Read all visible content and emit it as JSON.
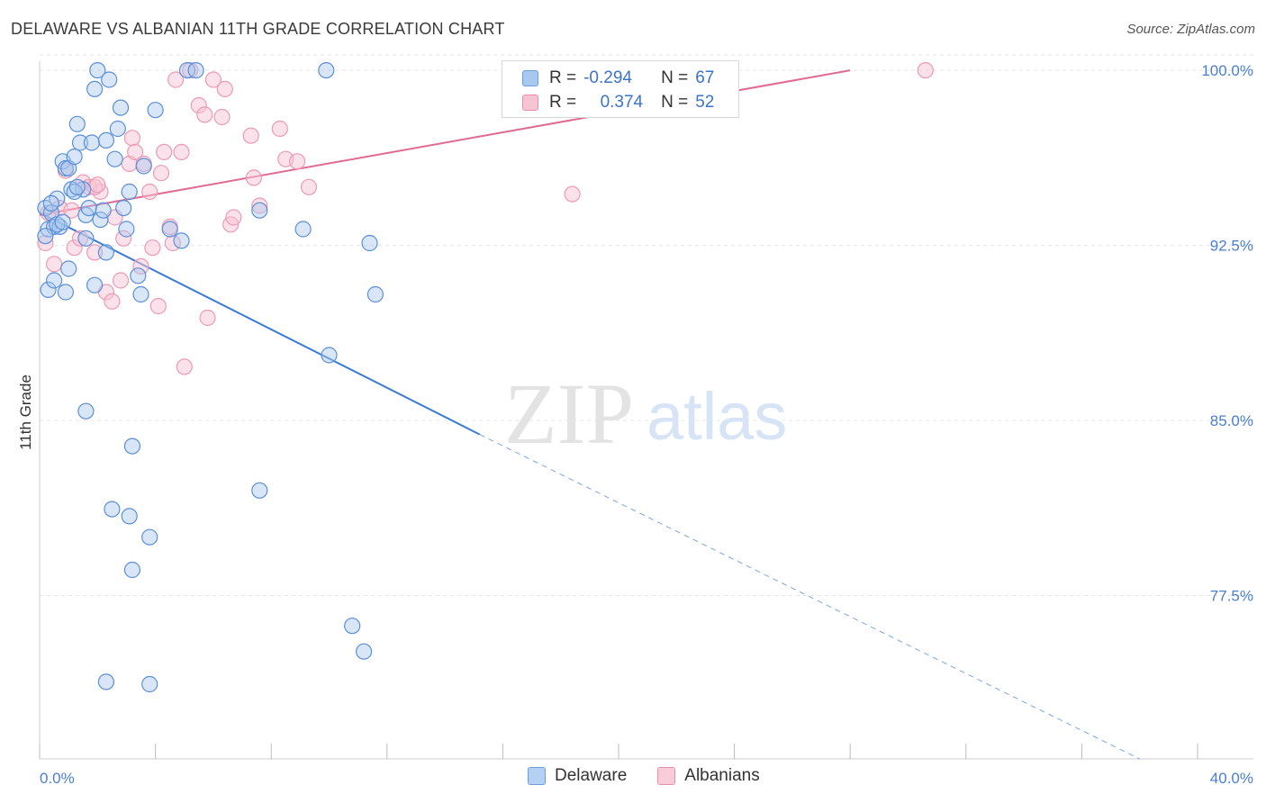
{
  "title": "DELAWARE VS ALBANIAN 11TH GRADE CORRELATION CHART",
  "source": "Source: ZipAtlas.com",
  "watermark": {
    "zip": "ZIP",
    "atlas": "atlas"
  },
  "legend": {
    "rows": [
      {
        "r_label": "R =",
        "r_value": "-0.294",
        "n_label": "N =",
        "n_value": "67",
        "color": "#6b9de0",
        "fill": "#a9c8f0"
      },
      {
        "r_label": "R =",
        "r_value": "0.374",
        "n_label": "N =",
        "n_value": "52",
        "color": "#ea8fab",
        "fill": "#f7c4d3"
      }
    ]
  },
  "bottom_legend": [
    {
      "label": "Delaware",
      "color": "#6b9de0",
      "fill": "#b6d0f3"
    },
    {
      "label": "Albanians",
      "color": "#ea8fab",
      "fill": "#f8ccd9"
    }
  ],
  "chart_data": {
    "type": "scatter",
    "title": "DELAWARE VS ALBANIAN 11TH GRADE CORRELATION CHART",
    "xlabel": "",
    "ylabel": "11th Grade",
    "xlim": [
      0,
      40
    ],
    "ylim": [
      70.5,
      100.7
    ],
    "x_tick_labels": [
      "0.0%",
      "40.0%"
    ],
    "y_ticks": [
      77.5,
      85.0,
      92.5,
      100.0
    ],
    "y_tick_labels": [
      "77.5%",
      "85.0%",
      "92.5%",
      "100.0%"
    ],
    "grid": true,
    "series": [
      {
        "name": "Delaware",
        "color": "#4a7fd0",
        "fill": "#a9c8f0",
        "points": [
          [
            0.2,
            94.1
          ],
          [
            0.3,
            93.2
          ],
          [
            0.4,
            93.9
          ],
          [
            0.5,
            93.3
          ],
          [
            0.6,
            94.5
          ],
          [
            0.7,
            93.3
          ],
          [
            0.8,
            96.1
          ],
          [
            0.9,
            95.8
          ],
          [
            1.0,
            95.8
          ],
          [
            1.1,
            94.9
          ],
          [
            1.2,
            96.3
          ],
          [
            1.3,
            97.7
          ],
          [
            1.4,
            96.9
          ],
          [
            1.5,
            94.9
          ],
          [
            1.6,
            93.8
          ],
          [
            1.7,
            94.1
          ],
          [
            1.8,
            96.9
          ],
          [
            1.9,
            99.2
          ],
          [
            2.0,
            100.0
          ],
          [
            2.1,
            93.6
          ],
          [
            2.2,
            94.0
          ],
          [
            2.3,
            97.0
          ],
          [
            2.4,
            99.6
          ],
          [
            2.6,
            96.2
          ],
          [
            2.7,
            97.5
          ],
          [
            2.8,
            98.4
          ],
          [
            3.0,
            93.2
          ],
          [
            3.1,
            94.8
          ],
          [
            3.4,
            91.2
          ],
          [
            3.5,
            90.4
          ],
          [
            3.6,
            95.9
          ],
          [
            4.0,
            98.3
          ],
          [
            4.5,
            93.2
          ],
          [
            4.9,
            92.7
          ],
          [
            5.1,
            100.0
          ],
          [
            5.4,
            100.0
          ],
          [
            7.6,
            94.0
          ],
          [
            9.1,
            93.2
          ],
          [
            9.9,
            100.0
          ],
          [
            1.0,
            91.5
          ],
          [
            0.3,
            90.6
          ],
          [
            0.9,
            90.5
          ],
          [
            1.9,
            90.8
          ],
          [
            2.3,
            92.2
          ],
          [
            1.6,
            92.8
          ],
          [
            0.5,
            91.0
          ],
          [
            0.2,
            92.9
          ],
          [
            1.6,
            85.4
          ],
          [
            3.2,
            83.9
          ],
          [
            7.6,
            82.0
          ],
          [
            2.5,
            81.2
          ],
          [
            3.1,
            80.9
          ],
          [
            3.8,
            80.0
          ],
          [
            3.2,
            78.6
          ],
          [
            10.0,
            87.8
          ],
          [
            11.4,
            92.6
          ],
          [
            11.6,
            90.4
          ],
          [
            10.8,
            76.2
          ],
          [
            11.2,
            75.1
          ],
          [
            2.3,
            73.8
          ],
          [
            3.8,
            73.7
          ],
          [
            0.6,
            93.4
          ],
          [
            1.2,
            94.8
          ],
          [
            2.9,
            94.1
          ],
          [
            0.4,
            94.3
          ],
          [
            1.3,
            95.0
          ],
          [
            0.8,
            93.5
          ]
        ],
        "trend": {
          "x0": 0.0,
          "y0": 93.9,
          "x1": 15.2,
          "y1": 84.4,
          "dash_x_end": 38.0,
          "dash_y_end": 70.5
        }
      },
      {
        "name": "Albanians",
        "color": "#e06a93",
        "fill": "#f7c4d3",
        "points": [
          [
            0.2,
            92.6
          ],
          [
            0.3,
            93.9
          ],
          [
            0.5,
            91.7
          ],
          [
            0.7,
            94.1
          ],
          [
            0.9,
            95.7
          ],
          [
            1.1,
            94.0
          ],
          [
            1.2,
            92.4
          ],
          [
            1.4,
            92.8
          ],
          [
            1.5,
            95.2
          ],
          [
            1.7,
            95.0
          ],
          [
            1.9,
            92.2
          ],
          [
            2.1,
            94.8
          ],
          [
            2.3,
            90.5
          ],
          [
            2.5,
            90.1
          ],
          [
            2.6,
            93.7
          ],
          [
            2.8,
            91.0
          ],
          [
            2.9,
            92.8
          ],
          [
            3.1,
            96.0
          ],
          [
            3.2,
            97.1
          ],
          [
            3.3,
            96.5
          ],
          [
            3.5,
            91.6
          ],
          [
            3.6,
            96.0
          ],
          [
            3.8,
            94.8
          ],
          [
            3.9,
            92.4
          ],
          [
            4.1,
            89.9
          ],
          [
            4.2,
            95.6
          ],
          [
            4.3,
            96.5
          ],
          [
            4.5,
            93.3
          ],
          [
            4.6,
            92.6
          ],
          [
            4.9,
            96.5
          ],
          [
            5.0,
            87.3
          ],
          [
            5.2,
            100.0
          ],
          [
            4.7,
            99.6
          ],
          [
            5.5,
            98.5
          ],
          [
            5.7,
            98.1
          ],
          [
            5.8,
            89.4
          ],
          [
            6.0,
            99.6
          ],
          [
            6.3,
            98.0
          ],
          [
            6.4,
            99.2
          ],
          [
            6.6,
            93.4
          ],
          [
            6.7,
            93.7
          ],
          [
            7.3,
            97.2
          ],
          [
            7.4,
            95.4
          ],
          [
            7.6,
            94.2
          ],
          [
            8.3,
            97.5
          ],
          [
            8.5,
            96.2
          ],
          [
            8.9,
            96.1
          ],
          [
            9.3,
            95.0
          ],
          [
            18.4,
            94.7
          ],
          [
            30.6,
            100.0
          ],
          [
            1.9,
            95.0
          ],
          [
            2.0,
            95.1
          ]
        ],
        "trend": {
          "x0": 0.0,
          "y0": 93.8,
          "x1": 28.0,
          "y1": 100.0
        }
      }
    ]
  }
}
